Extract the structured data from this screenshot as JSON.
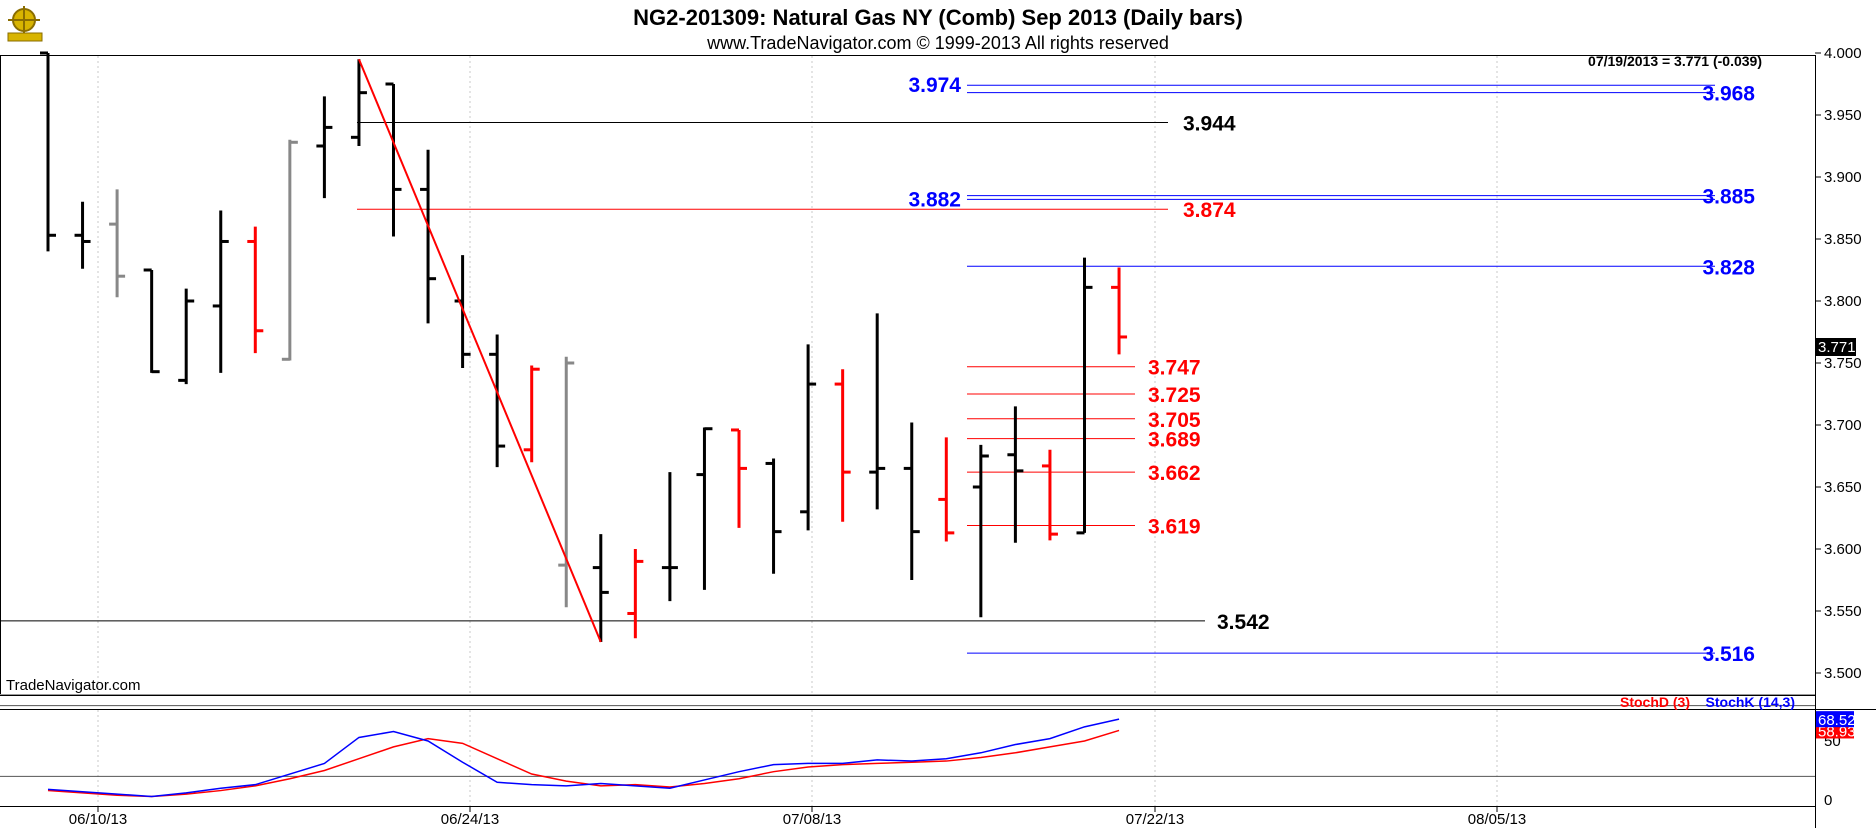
{
  "title": "NG2-201309:  Natural Gas NY (Comb) Sep 2013  (Daily bars)",
  "subtitle": "www.TradeNavigator.com © 1999-2013 All rights reserved",
  "watermark": "TradeNavigator.com",
  "last_quote": "07/19/2013 = 3.771 (-0.039)",
  "last_price_tag": "3.771",
  "logo": "compass-logo-icon",
  "colors": {
    "up": "#000000",
    "down": "#ff0000",
    "neutral": "#888888",
    "blue": "#0000ff",
    "red": "#ff0000",
    "black": "#000000"
  },
  "chart_data": [
    {
      "type": "ohlc",
      "bar_interval": "daily",
      "y_axis": {
        "range": [
          3.48,
          4.005
        ],
        "ticks": [
          "4.000",
          "3.950",
          "3.900",
          "3.850",
          "3.800",
          "3.750",
          "3.700",
          "3.650",
          "3.600",
          "3.550",
          "3.500"
        ]
      },
      "x_axis": {
        "ticks": [
          "06/10/13",
          "06/24/13",
          "07/08/13",
          "07/22/13",
          "08/05/13"
        ]
      },
      "bars": [
        {
          "o": 4.0,
          "h": 4.0,
          "l": 3.84,
          "c": 3.853,
          "color": "black"
        },
        {
          "o": 3.853,
          "h": 3.88,
          "l": 3.826,
          "c": 3.848,
          "color": "black"
        },
        {
          "o": 3.862,
          "h": 3.89,
          "l": 3.803,
          "c": 3.82,
          "color": "gray"
        },
        {
          "o": 3.825,
          "h": 3.825,
          "l": 3.742,
          "c": 3.743,
          "color": "black"
        },
        {
          "o": 3.736,
          "h": 3.81,
          "l": 3.733,
          "c": 3.8,
          "color": "black"
        },
        {
          "o": 3.796,
          "h": 3.873,
          "l": 3.742,
          "c": 3.848,
          "color": "black"
        },
        {
          "o": 3.848,
          "h": 3.86,
          "l": 3.758,
          "c": 3.776,
          "color": "red"
        },
        {
          "o": 3.753,
          "h": 3.93,
          "l": 3.752,
          "c": 3.928,
          "color": "gray"
        },
        {
          "o": 3.925,
          "h": 3.965,
          "l": 3.883,
          "c": 3.94,
          "color": "black"
        },
        {
          "o": 3.932,
          "h": 3.995,
          "l": 3.925,
          "c": 3.968,
          "color": "black"
        },
        {
          "o": 3.975,
          "h": 3.975,
          "l": 3.852,
          "c": 3.89,
          "color": "black"
        },
        {
          "o": 3.89,
          "h": 3.922,
          "l": 3.782,
          "c": 3.818,
          "color": "black"
        },
        {
          "o": 3.8,
          "h": 3.837,
          "l": 3.746,
          "c": 3.757,
          "color": "black"
        },
        {
          "o": 3.757,
          "h": 3.773,
          "l": 3.666,
          "c": 3.683,
          "color": "black"
        },
        {
          "o": 3.68,
          "h": 3.748,
          "l": 3.67,
          "c": 3.745,
          "color": "red"
        },
        {
          "o": 3.587,
          "h": 3.755,
          "l": 3.553,
          "c": 3.75,
          "color": "gray"
        },
        {
          "o": 3.585,
          "h": 3.612,
          "l": 3.525,
          "c": 3.565,
          "color": "black"
        },
        {
          "o": 3.548,
          "h": 3.6,
          "l": 3.528,
          "c": 3.59,
          "color": "red"
        },
        {
          "o": 3.585,
          "h": 3.662,
          "l": 3.558,
          "c": 3.585,
          "color": "black"
        },
        {
          "o": 3.66,
          "h": 3.698,
          "l": 3.567,
          "c": 3.697,
          "color": "black"
        },
        {
          "o": 3.696,
          "h": 3.696,
          "l": 3.617,
          "c": 3.665,
          "color": "red"
        },
        {
          "o": 3.669,
          "h": 3.673,
          "l": 3.58,
          "c": 3.614,
          "color": "black"
        },
        {
          "o": 3.63,
          "h": 3.765,
          "l": 3.615,
          "c": 3.733,
          "color": "black"
        },
        {
          "o": 3.733,
          "h": 3.745,
          "l": 3.622,
          "c": 3.662,
          "color": "red"
        },
        {
          "o": 3.662,
          "h": 3.79,
          "l": 3.632,
          "c": 3.665,
          "color": "black"
        },
        {
          "o": 3.665,
          "h": 3.702,
          "l": 3.575,
          "c": 3.614,
          "color": "black"
        },
        {
          "o": 3.64,
          "h": 3.69,
          "l": 3.606,
          "c": 3.613,
          "color": "red"
        },
        {
          "o": 3.65,
          "h": 3.684,
          "l": 3.545,
          "c": 3.675,
          "color": "black"
        },
        {
          "o": 3.676,
          "h": 3.715,
          "l": 3.605,
          "c": 3.663,
          "color": "black"
        },
        {
          "o": 3.667,
          "h": 3.68,
          "l": 3.607,
          "c": 3.612,
          "color": "red"
        },
        {
          "o": 3.613,
          "h": 3.835,
          "l": 3.613,
          "c": 3.811,
          "color": "black"
        },
        {
          "o": 3.811,
          "h": 3.827,
          "l": 3.757,
          "c": 3.771,
          "color": "red"
        }
      ],
      "levels": [
        {
          "value": 3.974,
          "label": "3.974",
          "color": "blue",
          "side": "left"
        },
        {
          "value": 3.968,
          "label": "3.968",
          "color": "blue",
          "side": "right"
        },
        {
          "value": 3.944,
          "label": "3.944",
          "color": "black",
          "side": "mid"
        },
        {
          "value": 3.885,
          "label": "3.885",
          "color": "blue",
          "side": "right"
        },
        {
          "value": 3.882,
          "label": "3.882",
          "color": "blue",
          "side": "left"
        },
        {
          "value": 3.874,
          "label": "3.874",
          "color": "red",
          "side": "mid"
        },
        {
          "value": 3.828,
          "label": "3.828",
          "color": "blue",
          "side": "right"
        },
        {
          "value": 3.747,
          "label": "3.747",
          "color": "red",
          "side": "mid"
        },
        {
          "value": 3.725,
          "label": "3.725",
          "color": "red",
          "side": "mid"
        },
        {
          "value": 3.705,
          "label": "3.705",
          "color": "red",
          "side": "mid"
        },
        {
          "value": 3.689,
          "label": "3.689",
          "color": "red",
          "side": "mid"
        },
        {
          "value": 3.662,
          "label": "3.662",
          "color": "red",
          "side": "mid"
        },
        {
          "value": 3.619,
          "label": "3.619",
          "color": "red",
          "side": "mid"
        },
        {
          "value": 3.542,
          "label": "3.542",
          "color": "black",
          "side": "mid"
        },
        {
          "value": 3.516,
          "label": "3.516",
          "color": "blue",
          "side": "right"
        }
      ],
      "trendline": {
        "from": {
          "bar": 9,
          "value": 3.995
        },
        "to": {
          "bar": 16,
          "value": 3.525
        },
        "color": "red"
      }
    },
    {
      "type": "line",
      "indicator": "Stochastic",
      "y_axis": {
        "range": [
          0,
          100
        ],
        "ticks": [
          "0",
          "50"
        ],
        "guides": [
          20,
          80
        ]
      },
      "series": [
        {
          "name": "StochD (3)",
          "color": "red",
          "last": "58.93",
          "values": [
            8,
            6,
            4,
            3,
            5,
            8,
            12,
            18,
            25,
            35,
            45,
            52,
            48,
            35,
            22,
            16,
            12,
            13,
            11,
            14,
            18,
            24,
            28,
            30,
            31,
            32,
            33,
            36,
            40,
            45,
            50,
            58.93
          ]
        },
        {
          "name": "StochK (14,3)",
          "color": "blue",
          "last": "68.52",
          "values": [
            9,
            7,
            5,
            3,
            6,
            10,
            13,
            22,
            31,
            53,
            58,
            50,
            32,
            15,
            13,
            12,
            14,
            12,
            10,
            17,
            24,
            30,
            31,
            31,
            34,
            33,
            35,
            40,
            47,
            52,
            62,
            68.52
          ]
        }
      ]
    }
  ]
}
